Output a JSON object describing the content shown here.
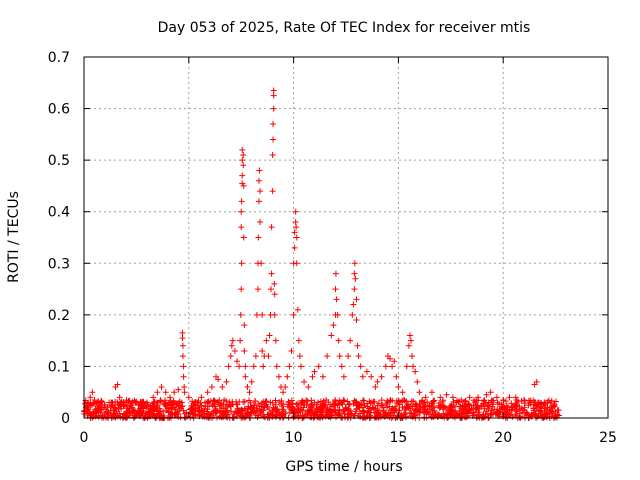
{
  "chart_data": {
    "type": "scatter",
    "title": "Day 053 of 2025, Rate Of TEC Index for receiver mtis",
    "xlabel": "GPS time / hours",
    "ylabel": "ROTI / TECUs",
    "xlim": [
      0,
      25
    ],
    "ylim": [
      0,
      0.7
    ],
    "xticks": [
      0,
      5,
      10,
      15,
      20,
      25
    ],
    "yticks": [
      0,
      0.1,
      0.2,
      0.3,
      0.4,
      0.5,
      0.6,
      0.7
    ],
    "grid": true,
    "marker": "+",
    "color": "#ff0000",
    "background_band": {
      "x_start": 0,
      "x_end": 22.7,
      "y_min": 0,
      "y_max": 0.035
    },
    "series_points": [
      [
        0.1,
        0.02
      ],
      [
        0.2,
        0.03
      ],
      [
        0.3,
        0.04
      ],
      [
        0.4,
        0.05
      ],
      [
        0.5,
        0.035
      ],
      [
        0.6,
        0.03
      ],
      [
        0.8,
        0.03
      ],
      [
        1.0,
        0.025
      ],
      [
        1.2,
        0.03
      ],
      [
        1.5,
        0.06
      ],
      [
        1.6,
        0.065
      ],
      [
        1.7,
        0.04
      ],
      [
        2.0,
        0.03
      ],
      [
        2.3,
        0.02
      ],
      [
        2.6,
        0.025
      ],
      [
        3.0,
        0.03
      ],
      [
        3.3,
        0.04
      ],
      [
        3.5,
        0.05
      ],
      [
        3.7,
        0.06
      ],
      [
        3.9,
        0.05
      ],
      [
        4.1,
        0.04
      ],
      [
        4.3,
        0.05
      ],
      [
        4.5,
        0.055
      ],
      [
        4.7,
        0.165
      ],
      [
        4.7,
        0.155
      ],
      [
        4.72,
        0.14
      ],
      [
        4.72,
        0.12
      ],
      [
        4.75,
        0.1
      ],
      [
        4.75,
        0.08
      ],
      [
        4.78,
        0.06
      ],
      [
        4.8,
        0.05
      ],
      [
        5.0,
        0.04
      ],
      [
        5.3,
        0.03
      ],
      [
        5.6,
        0.04
      ],
      [
        5.9,
        0.05
      ],
      [
        6.1,
        0.06
      ],
      [
        6.3,
        0.08
      ],
      [
        6.4,
        0.075
      ],
      [
        6.6,
        0.06
      ],
      [
        6.8,
        0.07
      ],
      [
        6.9,
        0.1
      ],
      [
        7.0,
        0.12
      ],
      [
        7.05,
        0.14
      ],
      [
        7.1,
        0.15
      ],
      [
        7.2,
        0.13
      ],
      [
        7.3,
        0.11
      ],
      [
        7.4,
        0.1
      ],
      [
        7.45,
        0.15
      ],
      [
        7.48,
        0.2
      ],
      [
        7.5,
        0.25
      ],
      [
        7.52,
        0.3
      ],
      [
        7.5,
        0.37
      ],
      [
        7.5,
        0.4
      ],
      [
        7.52,
        0.42
      ],
      [
        7.55,
        0.455
      ],
      [
        7.55,
        0.47
      ],
      [
        7.55,
        0.5
      ],
      [
        7.55,
        0.52
      ],
      [
        7.6,
        0.51
      ],
      [
        7.6,
        0.49
      ],
      [
        7.62,
        0.45
      ],
      [
        7.62,
        0.35
      ],
      [
        7.65,
        0.18
      ],
      [
        7.65,
        0.13
      ],
      [
        7.7,
        0.1
      ],
      [
        7.7,
        0.08
      ],
      [
        7.8,
        0.06
      ],
      [
        7.9,
        0.05
      ],
      [
        8.0,
        0.07
      ],
      [
        8.1,
        0.1
      ],
      [
        8.2,
        0.12
      ],
      [
        8.25,
        0.2
      ],
      [
        8.3,
        0.25
      ],
      [
        8.3,
        0.3
      ],
      [
        8.32,
        0.35
      ],
      [
        8.35,
        0.42
      ],
      [
        8.35,
        0.46
      ],
      [
        8.37,
        0.48
      ],
      [
        8.4,
        0.44
      ],
      [
        8.4,
        0.38
      ],
      [
        8.45,
        0.3
      ],
      [
        8.5,
        0.2
      ],
      [
        8.5,
        0.13
      ],
      [
        8.55,
        0.1
      ],
      [
        8.6,
        0.12
      ],
      [
        8.7,
        0.15
      ],
      [
        8.8,
        0.12
      ],
      [
        8.85,
        0.16
      ],
      [
        8.9,
        0.2
      ],
      [
        8.92,
        0.25
      ],
      [
        8.95,
        0.28
      ],
      [
        8.95,
        0.37
      ],
      [
        9.0,
        0.44
      ],
      [
        9.0,
        0.51
      ],
      [
        9.02,
        0.54
      ],
      [
        9.02,
        0.57
      ],
      [
        9.05,
        0.6
      ],
      [
        9.05,
        0.625
      ],
      [
        9.05,
        0.635
      ],
      [
        9.08,
        0.26
      ],
      [
        9.1,
        0.24
      ],
      [
        9.1,
        0.2
      ],
      [
        9.15,
        0.15
      ],
      [
        9.2,
        0.1
      ],
      [
        9.3,
        0.08
      ],
      [
        9.4,
        0.06
      ],
      [
        9.5,
        0.05
      ],
      [
        9.6,
        0.06
      ],
      [
        9.7,
        0.08
      ],
      [
        9.8,
        0.1
      ],
      [
        9.9,
        0.13
      ],
      [
        10.0,
        0.2
      ],
      [
        10.0,
        0.3
      ],
      [
        10.05,
        0.33
      ],
      [
        10.05,
        0.36
      ],
      [
        10.1,
        0.38
      ],
      [
        10.1,
        0.4
      ],
      [
        10.12,
        0.37
      ],
      [
        10.15,
        0.35
      ],
      [
        10.15,
        0.3
      ],
      [
        10.2,
        0.21
      ],
      [
        10.25,
        0.15
      ],
      [
        10.3,
        0.12
      ],
      [
        10.35,
        0.1
      ],
      [
        10.5,
        0.07
      ],
      [
        10.7,
        0.06
      ],
      [
        10.9,
        0.08
      ],
      [
        11.0,
        0.09
      ],
      [
        11.2,
        0.1
      ],
      [
        11.4,
        0.08
      ],
      [
        11.6,
        0.12
      ],
      [
        11.8,
        0.16
      ],
      [
        11.9,
        0.18
      ],
      [
        12.0,
        0.2
      ],
      [
        12.0,
        0.25
      ],
      [
        12.02,
        0.28
      ],
      [
        12.05,
        0.23
      ],
      [
        12.1,
        0.2
      ],
      [
        12.15,
        0.15
      ],
      [
        12.2,
        0.12
      ],
      [
        12.3,
        0.1
      ],
      [
        12.4,
        0.08
      ],
      [
        12.6,
        0.12
      ],
      [
        12.7,
        0.15
      ],
      [
        12.8,
        0.2
      ],
      [
        12.85,
        0.22
      ],
      [
        12.9,
        0.25
      ],
      [
        12.9,
        0.28
      ],
      [
        12.92,
        0.3
      ],
      [
        12.95,
        0.27
      ],
      [
        13.0,
        0.23
      ],
      [
        13.0,
        0.19
      ],
      [
        13.05,
        0.14
      ],
      [
        13.1,
        0.12
      ],
      [
        13.2,
        0.1
      ],
      [
        13.3,
        0.08
      ],
      [
        13.5,
        0.09
      ],
      [
        13.7,
        0.08
      ],
      [
        13.9,
        0.06
      ],
      [
        14.0,
        0.07
      ],
      [
        14.2,
        0.08
      ],
      [
        14.4,
        0.1
      ],
      [
        14.5,
        0.12
      ],
      [
        14.6,
        0.115
      ],
      [
        14.7,
        0.1
      ],
      [
        14.8,
        0.11
      ],
      [
        14.9,
        0.08
      ],
      [
        15.0,
        0.06
      ],
      [
        15.2,
        0.05
      ],
      [
        15.4,
        0.1
      ],
      [
        15.5,
        0.14
      ],
      [
        15.55,
        0.16
      ],
      [
        15.6,
        0.15
      ],
      [
        15.65,
        0.12
      ],
      [
        15.7,
        0.1
      ],
      [
        15.8,
        0.09
      ],
      [
        15.9,
        0.07
      ],
      [
        16.0,
        0.05
      ],
      [
        16.3,
        0.04
      ],
      [
        16.6,
        0.05
      ],
      [
        17.0,
        0.04
      ],
      [
        17.3,
        0.045
      ],
      [
        17.6,
        0.04
      ],
      [
        18.0,
        0.035
      ],
      [
        18.4,
        0.04
      ],
      [
        18.8,
        0.04
      ],
      [
        19.2,
        0.045
      ],
      [
        19.4,
        0.05
      ],
      [
        19.7,
        0.04
      ],
      [
        20.0,
        0.035
      ],
      [
        20.3,
        0.04
      ],
      [
        20.6,
        0.04
      ],
      [
        21.0,
        0.035
      ],
      [
        21.3,
        0.03
      ],
      [
        21.5,
        0.065
      ],
      [
        21.6,
        0.07
      ],
      [
        21.7,
        0.03
      ],
      [
        22.0,
        0.025
      ],
      [
        22.3,
        0.02
      ],
      [
        22.6,
        0.015
      ]
    ]
  }
}
